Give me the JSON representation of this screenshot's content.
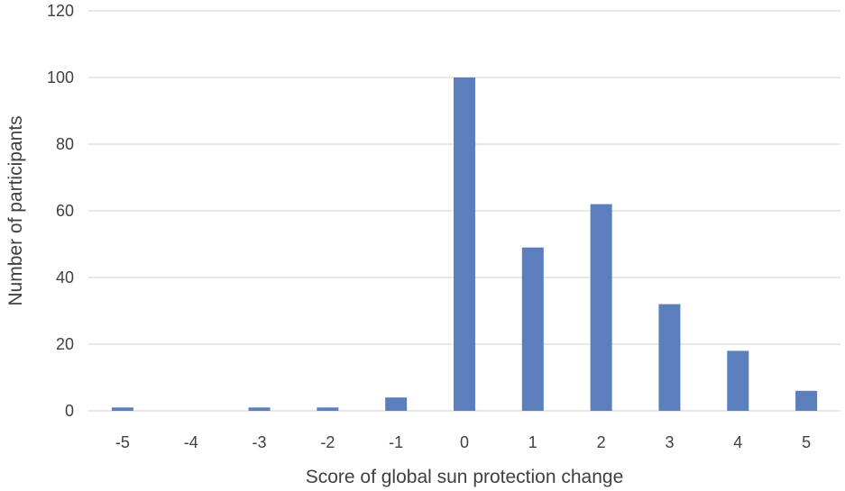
{
  "chart_data": {
    "type": "bar",
    "title": "",
    "xlabel": "Score of global sun protection change",
    "ylabel": "Number of participants",
    "categories": [
      "-5",
      "-4",
      "-3",
      "-2",
      "-1",
      "0",
      "1",
      "2",
      "3",
      "4",
      "5"
    ],
    "values": [
      1,
      0,
      1,
      1,
      4,
      100,
      49,
      62,
      32,
      18,
      6
    ],
    "ylim": [
      0,
      120
    ],
    "yticks": [
      0,
      20,
      40,
      60,
      80,
      100,
      120
    ],
    "grid": true,
    "legend": "none",
    "colors": {
      "bar": "#5b7fbd",
      "grid": "#d9d9d9",
      "text": "#404040"
    }
  }
}
